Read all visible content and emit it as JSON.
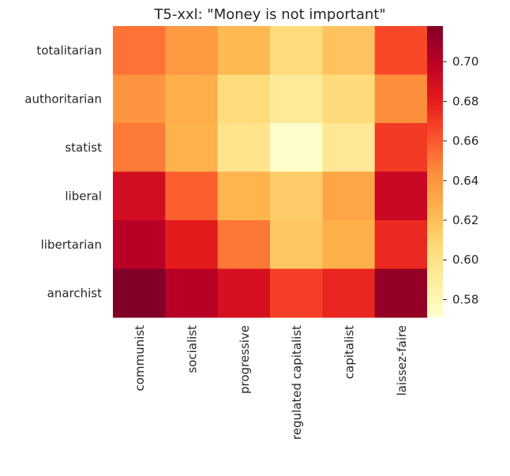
{
  "chart_data": {
    "type": "heatmap",
    "title": "T5-xxl: \"Money is not important\"",
    "rows": [
      "totalitarian",
      "authoritarian",
      "statist",
      "liberal",
      "libertarian",
      "anarchist"
    ],
    "columns": [
      "communist",
      "socialist",
      "progressive",
      "regulated capitalist",
      "capitalist",
      "laissez-faire"
    ],
    "values": [
      [
        0.652,
        0.638,
        0.623,
        0.605,
        0.618,
        0.665
      ],
      [
        0.641,
        0.628,
        0.605,
        0.592,
        0.606,
        0.644
      ],
      [
        0.65,
        0.626,
        0.598,
        0.572,
        0.594,
        0.67
      ],
      [
        0.69,
        0.658,
        0.625,
        0.614,
        0.632,
        0.694
      ],
      [
        0.701,
        0.681,
        0.651,
        0.616,
        0.627,
        0.676
      ],
      [
        0.718,
        0.701,
        0.688,
        0.668,
        0.677,
        0.712
      ]
    ],
    "colorbar": {
      "min": 0.571,
      "max": 0.718,
      "ticks": [
        "0.58",
        "0.60",
        "0.62",
        "0.64",
        "0.66",
        "0.68",
        "0.70"
      ],
      "colormap": "YlOrRd"
    }
  }
}
